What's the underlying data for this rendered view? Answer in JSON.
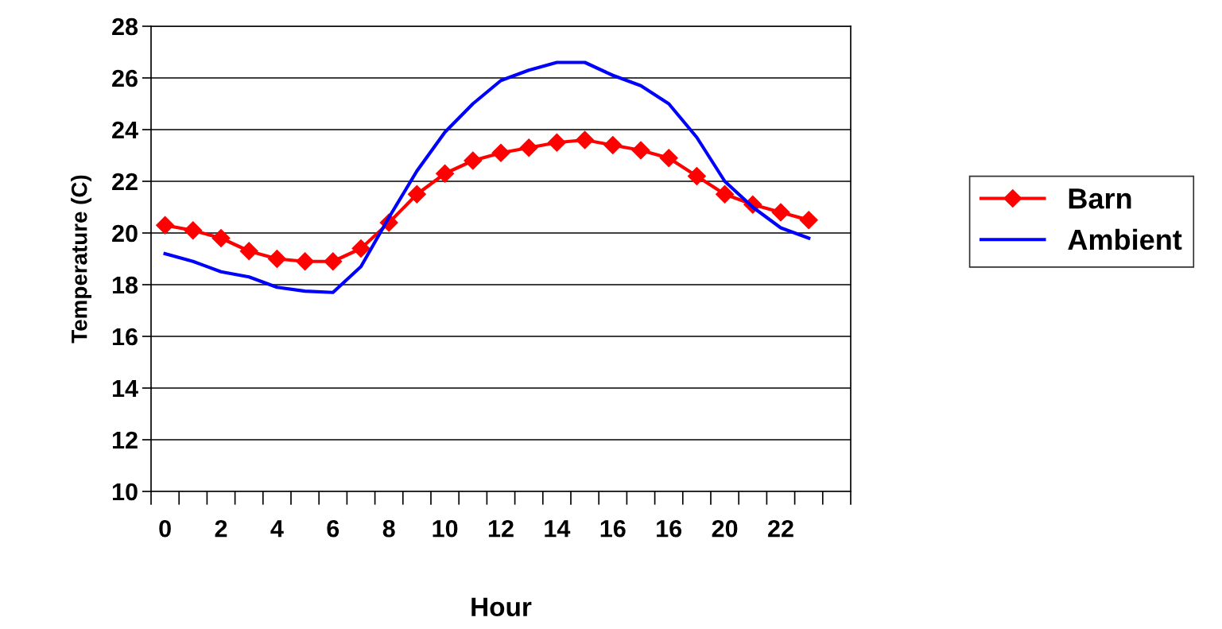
{
  "chart_data": {
    "type": "line",
    "xlabel": "Hour",
    "ylabel": "Temperature (C)",
    "categories": [
      "0",
      null,
      "2",
      null,
      "4",
      null,
      "6",
      null,
      "8",
      null,
      "10",
      null,
      "12",
      null,
      "14",
      null,
      "16",
      null,
      "16",
      null,
      "20",
      null,
      "22",
      null,
      null
    ],
    "series": [
      {
        "name": "Barn",
        "color": "#ff0000",
        "marker": "diamond",
        "values": [
          20.3,
          20.1,
          19.8,
          19.3,
          19.0,
          18.9,
          18.9,
          19.4,
          20.4,
          21.5,
          22.3,
          22.8,
          23.1,
          23.3,
          23.5,
          23.6,
          23.4,
          23.2,
          22.9,
          22.2,
          21.5,
          21.1,
          20.8,
          20.5,
          null
        ]
      },
      {
        "name": "Ambient",
        "color": "#0000ff",
        "marker": "none",
        "values": [
          19.2,
          18.9,
          18.5,
          18.3,
          17.9,
          17.75,
          17.7,
          18.7,
          20.6,
          22.4,
          23.9,
          25.0,
          25.9,
          26.3,
          26.6,
          26.6,
          26.1,
          25.7,
          25.0,
          23.7,
          22.0,
          21.0,
          20.2,
          19.8,
          null
        ]
      }
    ],
    "ylim": [
      10,
      28
    ],
    "yticks": [
      10,
      12,
      14,
      16,
      18,
      20,
      22,
      24,
      26,
      28
    ],
    "grid": "y",
    "legend": "right"
  }
}
